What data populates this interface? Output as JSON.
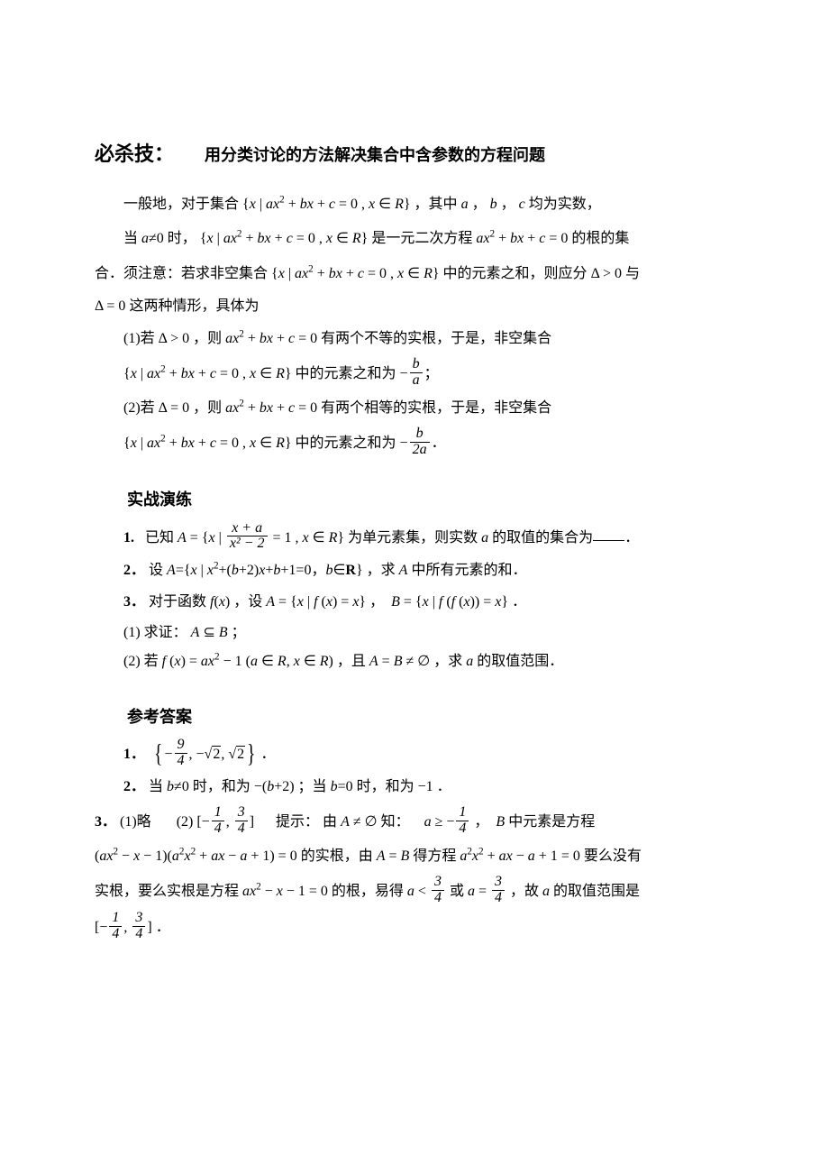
{
  "heading": {
    "label": "必杀技：",
    "title": "用分类讨论的方法解决集合中含参数的方程问题"
  },
  "intro": {
    "p1_a": "一般地，对于集合 ",
    "p1_b": "，其中 ",
    "p1_c": " 均为实数，",
    "p2_a": "当 ",
    "p2_b": " 时，",
    "p2_c": " 是一元二次方程 ",
    "p2_d": " 的根的集",
    "p3_a": "合．须注意：若求非空集合 ",
    "p3_b": " 中的元素之和，则应分 ",
    "p3_c": " 与",
    "p4_a": " 这两种情形，具体为",
    "c1_a": "(1)若 ",
    "c1_b": "，则 ",
    "c1_c": " 有两个不等的实根，于是，非空集合",
    "c1_d": " 中的元素之和为 ",
    "c2_a": "(2)若 ",
    "c2_b": "，则 ",
    "c2_c": " 有两个相等的实根，于是，非空集合",
    "c2_d": " 中的元素之和为 "
  },
  "exercises": {
    "heading": "实战演练",
    "q1_prefix": "1.",
    "q1_a": "已知 ",
    "q1_b": " 为单元素集，则实数 ",
    "q1_c": " 的取值的集合为",
    "q1_d": "．",
    "q2_prefix": "2．",
    "q2_a": "设 ",
    "q2_b": "，求 ",
    "q2_c": " 中所有元素的和．",
    "q3_prefix": "3．",
    "q3_a": "对于函数 ",
    "q3_b": "，设 ",
    "q3_c": "．",
    "q3s1": "(1)  求证：",
    "q3s1_end": "；",
    "q3s2": "(2)  若 ",
    "q3s2_b": "，且 ",
    "q3s2_c": "，求 ",
    "q3s2_d": " 的取值范围．"
  },
  "answers": {
    "heading": "参考答案",
    "a1_prefix": "1．",
    "a1_end": "．",
    "a2_prefix": "2．",
    "a2_a": "当 ",
    "a2_b": " 时，和为 ",
    "a2_c": "；当 ",
    "a2_d": " 时，和为 ",
    "a2_e": "．",
    "a3_prefix": "3．",
    "a3_p1": "(1)略",
    "a3_p2": "(2)  ",
    "a3_hint_label": "提示：",
    "a3_h1": "由 ",
    "a3_h2": " 知：",
    "a3_h3": "，",
    "a3_h4": " 中元素是方程",
    "a3_l2a": " 的实根，由 ",
    "a3_l2b": " 得方程 ",
    "a3_l2c": " 要么没有",
    "a3_l3a": "实根，要么实根是方程 ",
    "a3_l3b": " 的根，易得 ",
    "a3_l3c": " 或 ",
    "a3_l3d": "，故 ",
    "a3_l3e": " 的取值范围是",
    "a3_l4": "．"
  },
  "math": {
    "set_axbxc": "{x | ax² + bx + c = 0, x ∈ R}",
    "abc_list": "a ， b ， c",
    "a_ne_0": "a≠0",
    "ax2bxc": "ax² + bx + c = 0",
    "delta_gt0": "Δ > 0",
    "delta_eq0": "Δ = 0",
    "neg_b_over_a_num": "b",
    "neg_b_over_a_den": "a",
    "neg_b_over_2a_num": "b",
    "neg_b_over_2a_den": "2a",
    "A_eq": "A = {x | ",
    "frac_xa_num": "x + a",
    "frac_xa_den": "x² − 2",
    "eq1_xR": " = 1, x ∈ R}",
    "var_a": "a",
    "A_set2": "A={x | x²+(b+2)x+b+1=0，b∈",
    "R_bold": "R",
    "brace_close": "}",
    "var_A": "A",
    "fx": "f(x)",
    "A_fx": "A = {x | f(x) = x}",
    "B_ffx": "B = {x | f(f(x)) = x}",
    "A_sub_B": "A ⊆ B",
    "fx_ax2m1": "f(x) = ax² − 1 (a ∈ R, x ∈ R)",
    "AeqBneE": "A = B ≠ ∅",
    "ans1_a": "9",
    "ans1_b": "4",
    "sqrt2": "2",
    "b_ne_0": "b≠0",
    "neg_bp2": "−(b+2)",
    "b_eq_0": "b=0",
    "neg1": "−1",
    "int_l_num": "1",
    "int_l_den": "4",
    "int_r_num": "3",
    "int_r_den": "4",
    "AneE": "A ≠ ∅",
    "a_ge": "a ≥ −",
    "var_B": "B",
    "poly_long": "(ax² − x − 1)(a²x² + ax − a + 1) = 0",
    "AeqB": "A = B",
    "poly2": "a²x² + ax − a + 1 = 0",
    "poly3": "ax² − x − 1 = 0",
    "a_lt": "a < ",
    "a_eq": "a = "
  }
}
